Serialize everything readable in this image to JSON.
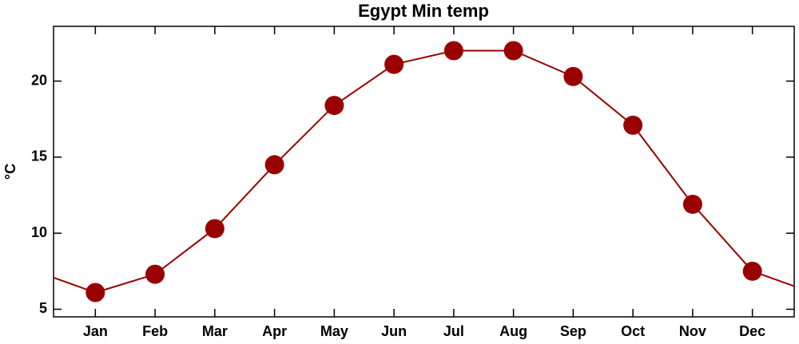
{
  "chart_data": {
    "type": "line",
    "title": "Egypt Min temp",
    "ylabel": "°C",
    "categories": [
      "Jan",
      "Feb",
      "Mar",
      "Apr",
      "May",
      "Jun",
      "Jul",
      "Aug",
      "Sep",
      "Oct",
      "Nov",
      "Dec"
    ],
    "series": [
      {
        "name": "Min temp",
        "color": "#990000",
        "values": [
          6.1,
          7.3,
          10.3,
          14.5,
          18.4,
          21.1,
          22.0,
          22.0,
          20.3,
          17.1,
          11.9,
          7.5
        ]
      }
    ],
    "ylim": [
      4.5,
      23.6
    ],
    "yticks": [
      5,
      10,
      15,
      20
    ]
  }
}
